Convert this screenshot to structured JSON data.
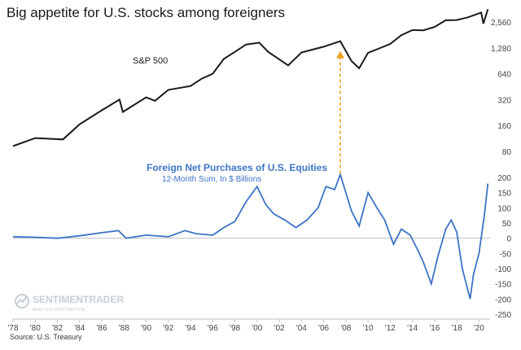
{
  "title": "Big appetite for U.S. stocks among foreigners",
  "source": "Source: U.S. Treasury",
  "watermark": {
    "brand": "SENTIMENTRADER",
    "tagline": "ANALYSIS OVER EMOTION"
  },
  "colors": {
    "sp500": "#1a1a1a",
    "flows": "#3d74c4",
    "arrow": "#f0a020",
    "zero": "#bfbfbf",
    "watermark": "#c6cfd8"
  },
  "chart_data": [
    {
      "type": "line",
      "name": "S&P 500",
      "title": "S&P 500",
      "scale": "log",
      "ylim": [
        70,
        3400
      ],
      "y_ticks": [
        80,
        160,
        320,
        640,
        1280,
        2560
      ],
      "y_tick_labels": [
        "80",
        "160",
        "320",
        "640",
        "1,280",
        "2,560"
      ],
      "x": [
        1978.0,
        1980.0,
        1982.5,
        1984.0,
        1986.0,
        1987.6,
        1987.9,
        1990.0,
        1990.8,
        1992.0,
        1994.0,
        1995.0,
        1996.0,
        1997.0,
        1998.0,
        1999.0,
        2000.2,
        2001.0,
        2002.8,
        2004.0,
        2006.0,
        2007.5,
        2008.5,
        2009.2,
        2010.0,
        2011.0,
        2012.0,
        2013.0,
        2014.0,
        2015.0,
        2016.0,
        2017.0,
        2018.0,
        2019.0,
        2020.2,
        2020.4,
        2020.8
      ],
      "values": [
        92,
        114,
        110,
        165,
        240,
        320,
        230,
        340,
        310,
        415,
        460,
        560,
        640,
        950,
        1150,
        1400,
        1470,
        1150,
        800,
        1130,
        1320,
        1530,
        900,
        740,
        1120,
        1260,
        1420,
        1800,
        2060,
        2050,
        2240,
        2680,
        2700,
        2900,
        3300,
        2450,
        3600
      ]
    },
    {
      "type": "line",
      "name": "Foreign Net Purchases of U.S. Equities",
      "title": "Foreign Net Purchases of U.S. Equities",
      "subtitle": "12-Month Sum, In $ Billions",
      "ylim": [
        -250,
        200
      ],
      "y_ticks": [
        -250,
        -200,
        -150,
        -100,
        -50,
        0,
        50,
        100,
        150,
        200
      ],
      "y_tick_labels": [
        "-250",
        "-200",
        "-150",
        "-100",
        "-50",
        "0",
        "50",
        "100",
        "150",
        "200"
      ],
      "x": [
        1978.0,
        1980.0,
        1982.0,
        1984.0,
        1986.0,
        1987.5,
        1988.2,
        1990.0,
        1992.0,
        1993.5,
        1994.5,
        1996.0,
        1997.0,
        1998.0,
        1999.0,
        2000.0,
        2000.8,
        2001.5,
        2002.5,
        2003.5,
        2004.5,
        2005.5,
        2006.2,
        2007.0,
        2007.5,
        2008.5,
        2009.2,
        2010.0,
        2010.8,
        2011.5,
        2012.3,
        2013.0,
        2013.8,
        2014.5,
        2015.0,
        2015.7,
        2016.3,
        2017.0,
        2017.5,
        2018.0,
        2018.5,
        2019.2,
        2019.5,
        2020.0,
        2020.5,
        2020.8
      ],
      "values": [
        5,
        3,
        0,
        8,
        18,
        25,
        0,
        10,
        5,
        25,
        15,
        10,
        35,
        55,
        120,
        170,
        110,
        80,
        60,
        35,
        60,
        100,
        170,
        160,
        210,
        90,
        40,
        150,
        100,
        60,
        -20,
        30,
        10,
        -40,
        -80,
        -150,
        -60,
        30,
        60,
        20,
        -100,
        -200,
        -120,
        -50,
        80,
        180
      ]
    }
  ],
  "x_axis": {
    "ticks": [
      1978,
      1980,
      1982,
      1984,
      1986,
      1988,
      1990,
      1992,
      1994,
      1996,
      1998,
      2000,
      2002,
      2004,
      2006,
      2008,
      2010,
      2012,
      2014,
      2016,
      2018,
      2020
    ],
    "tick_labels": [
      "'78",
      "'80",
      "'82",
      "'84",
      "'86",
      "'88",
      "'90",
      "'92",
      "'94",
      "'96",
      "'98",
      "'00",
      "'02",
      "'04",
      "'06",
      "'08",
      "'10",
      "'12",
      "'14",
      "'16",
      "'18",
      "'20"
    ]
  },
  "annotation": {
    "from_year": 2007.5,
    "to_year": 2007.5,
    "style": "dashed-arrow-up"
  }
}
